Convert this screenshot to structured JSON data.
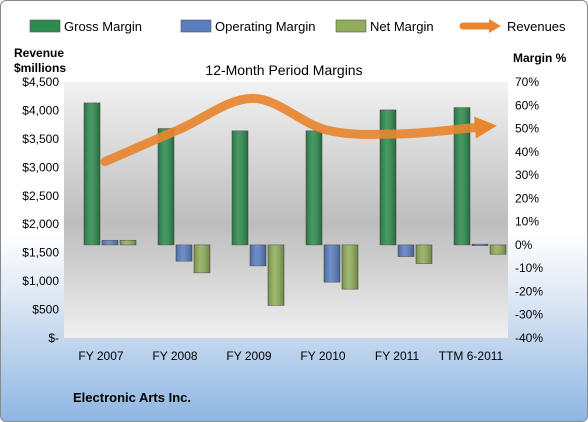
{
  "chart_data": {
    "type": "bar",
    "title": "12-Month Period Margins",
    "categories": [
      "FY 2007",
      "FY 2008",
      "FY 2009",
      "FY 2010",
      "FY 2011",
      "TTM 6-2011"
    ],
    "series": [
      {
        "name": "Gross Margin",
        "axis": "right",
        "color": "#2e8b4f",
        "values": [
          61,
          50,
          49,
          49,
          58,
          59
        ]
      },
      {
        "name": "Operating Margin",
        "axis": "right",
        "color": "#5a7fc0",
        "values": [
          2,
          -7,
          -9,
          -16,
          -5,
          0
        ]
      },
      {
        "name": "Net Margin",
        "axis": "right",
        "color": "#8fad5a",
        "values": [
          2,
          -12,
          -26,
          -19,
          -8,
          -4
        ]
      },
      {
        "name": "Revenues",
        "axis": "left",
        "type": "line",
        "color": "#e8862f",
        "values": [
          3100,
          3665,
          4212,
          3654,
          3589,
          3700
        ]
      }
    ],
    "left_axis": {
      "label_lines": [
        "Revenue",
        "$millions"
      ],
      "ylim": [
        0,
        4500
      ],
      "ticks": [
        {
          "value": 0,
          "label": "$-"
        },
        {
          "value": 500,
          "label": "$500"
        },
        {
          "value": 1000,
          "label": "$1,000"
        },
        {
          "value": 1500,
          "label": "$1,500"
        },
        {
          "value": 2000,
          "label": "$2,000"
        },
        {
          "value": 2500,
          "label": "$2,500"
        },
        {
          "value": 3000,
          "label": "$3,000"
        },
        {
          "value": 3500,
          "label": "$3,500"
        },
        {
          "value": 4000,
          "label": "$4,000"
        },
        {
          "value": 4500,
          "label": "$4,500"
        }
      ]
    },
    "right_axis": {
      "label": "Margin %",
      "ylim": [
        -40,
        70
      ],
      "ticks": [
        {
          "value": -40,
          "label": "-40%"
        },
        {
          "value": -30,
          "label": "-30%"
        },
        {
          "value": -20,
          "label": "-20%"
        },
        {
          "value": -10,
          "label": "-10%"
        },
        {
          "value": 0,
          "label": "0%"
        },
        {
          "value": 10,
          "label": "10%"
        },
        {
          "value": 20,
          "label": "20%"
        },
        {
          "value": 30,
          "label": "30%"
        },
        {
          "value": 40,
          "label": "40%"
        },
        {
          "value": 50,
          "label": "50%"
        },
        {
          "value": 60,
          "label": "60%"
        },
        {
          "value": 70,
          "label": "70%"
        }
      ]
    },
    "legend_position": "top",
    "grid": false
  },
  "company": "Electronic Arts Inc."
}
